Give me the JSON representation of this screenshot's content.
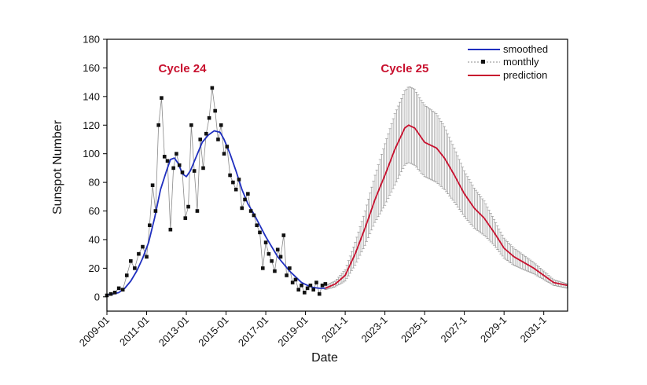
{
  "chart_data": {
    "type": "line",
    "title": "",
    "xlabel": "Date",
    "ylabel": "Sunspot Number",
    "ylim": [
      -10,
      180
    ],
    "yticks": [
      0,
      20,
      40,
      60,
      80,
      100,
      120,
      140,
      160,
      180
    ],
    "xlim": [
      2009.0,
      2032.2
    ],
    "xticks": [
      {
        "label": "2009-01",
        "value": 2009.0
      },
      {
        "label": "2011-01",
        "value": 2011.0
      },
      {
        "label": "2013-01",
        "value": 2013.0
      },
      {
        "label": "2015-01",
        "value": 2015.0
      },
      {
        "label": "2017-01",
        "value": 2017.0
      },
      {
        "label": "2019-01",
        "value": 2019.0
      },
      {
        "label": "2021-1",
        "value": 2021.0
      },
      {
        "label": "2023-1",
        "value": 2023.0
      },
      {
        "label": "2025-1",
        "value": 2025.0
      },
      {
        "label": "2027-1",
        "value": 2027.0
      },
      {
        "label": "2029-1",
        "value": 2029.0
      },
      {
        "label": "2031-1",
        "value": 2031.0
      }
    ],
    "grid": false,
    "legend_position": "top-right",
    "annotations": [
      {
        "text": "Cycle 24",
        "x": 2012.8,
        "y": 157,
        "color": "#c8102e"
      },
      {
        "text": "Cycle 25",
        "x": 2024.0,
        "y": 157,
        "color": "#c8102e"
      }
    ],
    "series": [
      {
        "name": "smoothed",
        "color": "#1f2fbf",
        "x": [
          2009.0,
          2009.3,
          2009.6,
          2009.9,
          2010.2,
          2010.5,
          2010.8,
          2011.1,
          2011.4,
          2011.7,
          2012.0,
          2012.2,
          2012.4,
          2012.6,
          2012.8,
          2013.0,
          2013.2,
          2013.5,
          2013.8,
          2014.1,
          2014.4,
          2014.7,
          2014.9,
          2015.2,
          2015.5,
          2015.8,
          2016.1,
          2016.4,
          2016.7,
          2017.0,
          2017.3,
          2017.6,
          2017.9,
          2018.2,
          2018.5,
          2018.8,
          2019.1,
          2019.4,
          2019.7,
          2020.0
        ],
        "y": [
          1.5,
          2,
          3,
          6,
          11,
          18,
          27,
          38,
          55,
          75,
          88,
          96,
          97,
          93,
          86,
          84,
          88,
          98,
          108,
          113,
          116,
          115,
          110,
          100,
          88,
          75,
          65,
          58,
          50,
          42,
          35,
          28,
          23,
          18,
          14,
          10,
          8,
          6.5,
          6,
          6
        ]
      },
      {
        "name": "monthly",
        "color": "#222222",
        "x": [
          2009.0,
          2009.2,
          2009.4,
          2009.6,
          2009.8,
          2010.0,
          2010.2,
          2010.4,
          2010.6,
          2010.8,
          2011.0,
          2011.15,
          2011.3,
          2011.45,
          2011.6,
          2011.75,
          2011.9,
          2012.05,
          2012.2,
          2012.35,
          2012.5,
          2012.65,
          2012.8,
          2012.95,
          2013.1,
          2013.25,
          2013.4,
          2013.55,
          2013.7,
          2013.85,
          2014.0,
          2014.15,
          2014.3,
          2014.45,
          2014.6,
          2014.75,
          2014.9,
          2015.05,
          2015.2,
          2015.35,
          2015.5,
          2015.65,
          2015.8,
          2015.95,
          2016.1,
          2016.25,
          2016.4,
          2016.55,
          2016.7,
          2016.85,
          2017.0,
          2017.15,
          2017.3,
          2017.45,
          2017.6,
          2017.75,
          2017.9,
          2018.05,
          2018.2,
          2018.35,
          2018.5,
          2018.65,
          2018.8,
          2018.95,
          2019.1,
          2019.25,
          2019.4,
          2019.55,
          2019.7,
          2019.85,
          2020.0
        ],
        "y": [
          1,
          2,
          3,
          6,
          5,
          15,
          25,
          20,
          30,
          35,
          28,
          50,
          78,
          60,
          120,
          139,
          98,
          95,
          47,
          90,
          100,
          92,
          87,
          55,
          63,
          120,
          88,
          60,
          110,
          90,
          114,
          125,
          146,
          130,
          110,
          120,
          100,
          105,
          85,
          80,
          75,
          82,
          62,
          68,
          72,
          60,
          57,
          50,
          45,
          20,
          38,
          30,
          25,
          18,
          33,
          28,
          43,
          15,
          20,
          10,
          12,
          5,
          8,
          3,
          6,
          8,
          5,
          10,
          2,
          8,
          9
        ]
      },
      {
        "name": "prediction",
        "color": "#c8102e",
        "x": [
          2020.0,
          2020.5,
          2021.0,
          2021.5,
          2022.0,
          2022.5,
          2023.0,
          2023.5,
          2024.0,
          2024.2,
          2024.5,
          2024.8,
          2025.0,
          2025.3,
          2025.6,
          2026.0,
          2026.5,
          2027.0,
          2027.5,
          2028.0,
          2028.5,
          2029.0,
          2029.5,
          2030.0,
          2030.5,
          2031.0,
          2031.5,
          2032.2
        ],
        "y": [
          6,
          9,
          15,
          30,
          48,
          68,
          85,
          103,
          118,
          120,
          118,
          112,
          108,
          106,
          104,
          97,
          85,
          72,
          62,
          55,
          45,
          34,
          28,
          24,
          20,
          15,
          10,
          8
        ],
        "error_upper": [
          8,
          11,
          19,
          38,
          60,
          85,
          107,
          128,
          144,
          147,
          145,
          138,
          134,
          131,
          128,
          119,
          104,
          88,
          76,
          67,
          54,
          41,
          34,
          29,
          24,
          18,
          12,
          9
        ],
        "error_lower": [
          5,
          7,
          11,
          22,
          36,
          52,
          64,
          78,
          92,
          94,
          92,
          87,
          84,
          82,
          80,
          75,
          66,
          56,
          48,
          43,
          36,
          27,
          22,
          19,
          16,
          12,
          8,
          6
        ]
      }
    ]
  }
}
